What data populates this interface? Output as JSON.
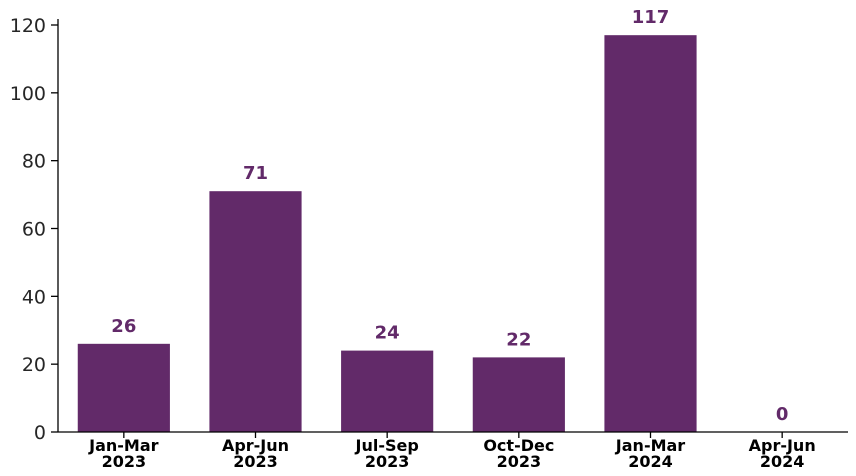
{
  "chart_data": {
    "type": "bar",
    "categories": [
      [
        "Jan-Mar",
        "2023"
      ],
      [
        "Apr-Jun",
        "2023"
      ],
      [
        "Jul-Sep",
        "2023"
      ],
      [
        "Oct-Dec",
        "2023"
      ],
      [
        "Jan-Mar",
        "2024"
      ],
      [
        "Apr-Jun",
        "2024"
      ]
    ],
    "values": [
      26,
      71,
      24,
      22,
      117,
      0
    ],
    "data_labels": [
      "26",
      "71",
      "24",
      "22",
      "117",
      "0"
    ],
    "title": "",
    "xlabel": "",
    "ylabel": "",
    "ylim": [
      0,
      120
    ],
    "yticks": [
      0,
      20,
      40,
      60,
      80,
      100,
      120
    ],
    "ytick_labels": [
      "0",
      "20",
      "40",
      "60",
      "80",
      "100",
      "120"
    ],
    "grid": false,
    "legend": "none",
    "bar_color": "#622a69",
    "label_color": "#622a69"
  }
}
